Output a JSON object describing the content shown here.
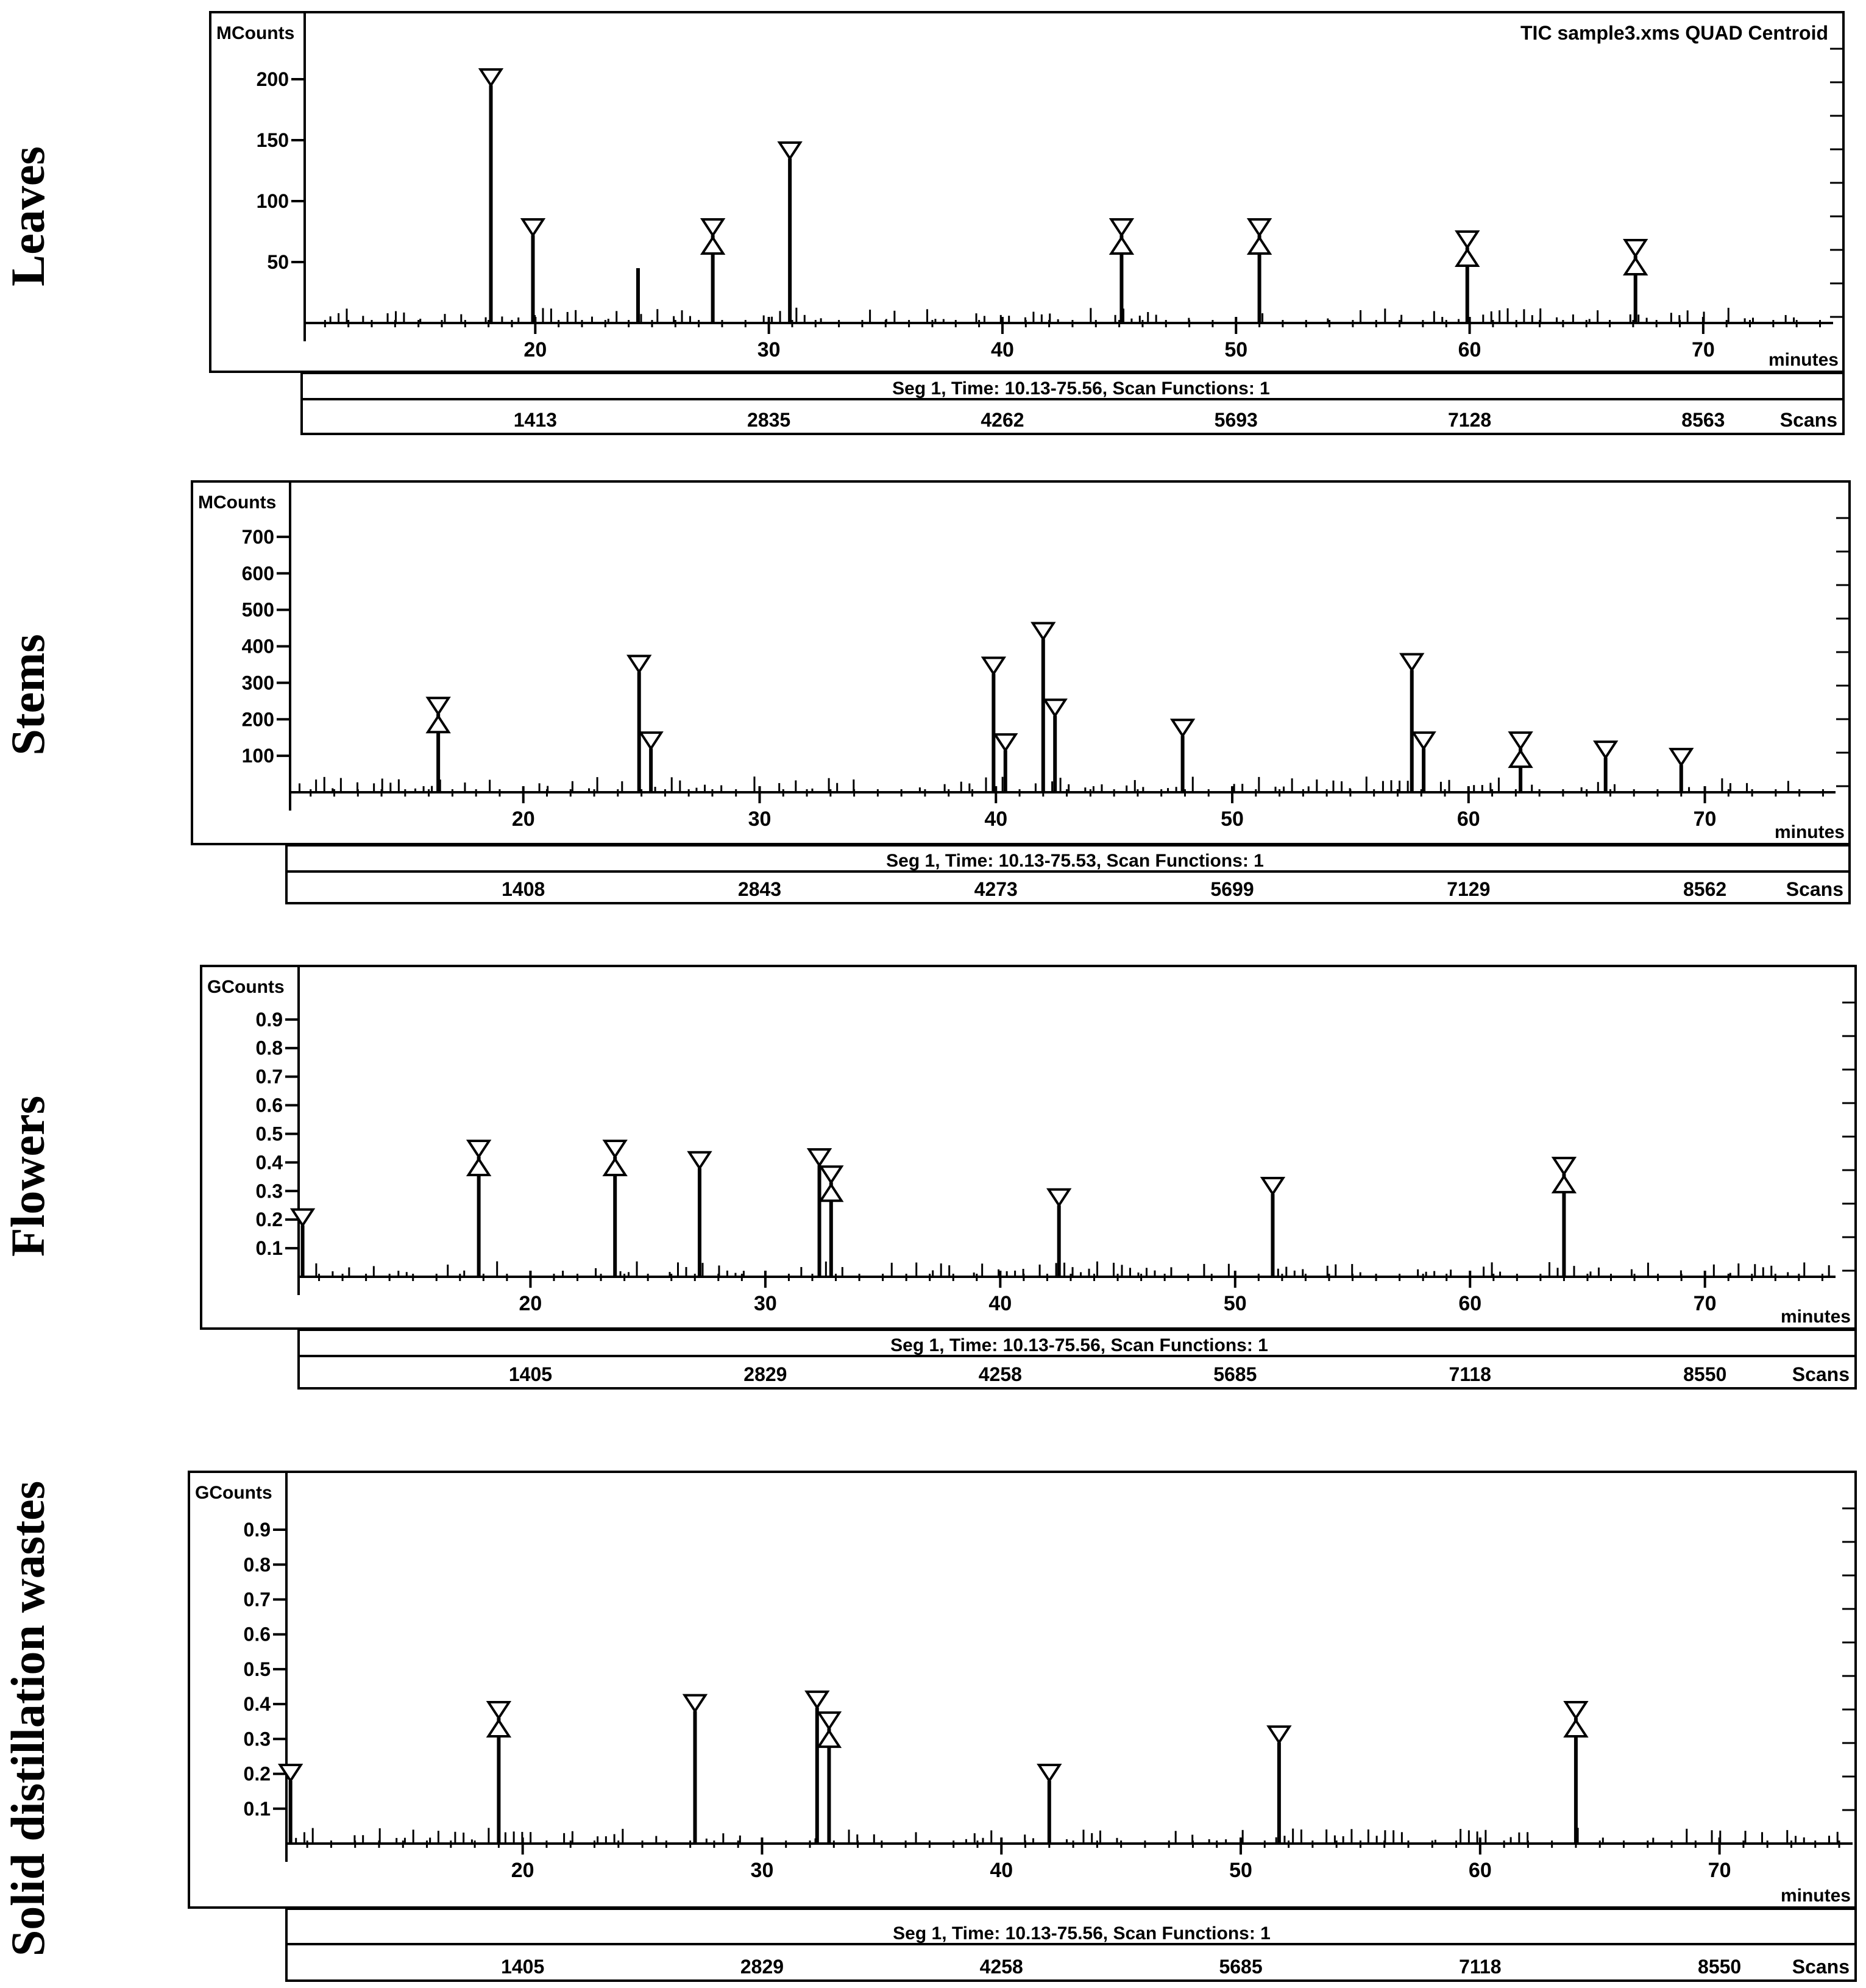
{
  "chart_data": [
    {
      "type": "line",
      "sample_label": "Leaves",
      "yunit": "MCounts",
      "title": "TIC sample3.xms QUAD Centroid",
      "yticks": [
        50,
        100,
        150,
        200
      ],
      "ylim": [
        0,
        230
      ],
      "xticks": [
        20,
        30,
        40,
        50,
        60,
        70
      ],
      "xlim": [
        10.13,
        75.56
      ],
      "xlabel": "minutes",
      "segment_text": "Seg 1, Time: 10.13-75.56, Scan Functions: 1",
      "scans": [
        "1413",
        "2835",
        "4262",
        "5693",
        "7128",
        "8563"
      ],
      "scans_label": "Scans",
      "peaks": [
        {
          "x": 18.1,
          "y": 195,
          "markers": [
            "down"
          ]
        },
        {
          "x": 19.9,
          "y": 72,
          "markers": [
            "down"
          ]
        },
        {
          "x": 24.4,
          "y": 45,
          "markers": []
        },
        {
          "x": 27.6,
          "y": 72,
          "markers": [
            "down",
            "up"
          ]
        },
        {
          "x": 30.9,
          "y": 135,
          "markers": [
            "down"
          ]
        },
        {
          "x": 45.1,
          "y": 72,
          "markers": [
            "down",
            "up"
          ]
        },
        {
          "x": 51.0,
          "y": 72,
          "markers": [
            "down",
            "up"
          ]
        },
        {
          "x": 59.9,
          "y": 62,
          "markers": [
            "down",
            "up"
          ]
        },
        {
          "x": 67.1,
          "y": 55,
          "markers": [
            "down",
            "up"
          ]
        }
      ]
    },
    {
      "type": "line",
      "sample_label": "Stems",
      "yunit": "MCounts",
      "title": "",
      "yticks": [
        100,
        200,
        300,
        400,
        500,
        600,
        700
      ],
      "ylim": [
        0,
        760
      ],
      "xticks": [
        20,
        30,
        40,
        50,
        60,
        70
      ],
      "xlim": [
        10.13,
        75.53
      ],
      "xlabel": "minutes",
      "segment_text": "Seg 1, Time: 10.13-75.53, Scan Functions: 1",
      "scans": [
        "1408",
        "2843",
        "4273",
        "5699",
        "7129",
        "8562"
      ],
      "scans_label": "Scans",
      "peaks": [
        {
          "x": 16.4,
          "y": 215,
          "markers": [
            "down",
            "up"
          ]
        },
        {
          "x": 24.9,
          "y": 330,
          "markers": [
            "down"
          ]
        },
        {
          "x": 25.4,
          "y": 120,
          "markers": [
            "down"
          ]
        },
        {
          "x": 39.9,
          "y": 325,
          "markers": [
            "down"
          ]
        },
        {
          "x": 40.4,
          "y": 115,
          "markers": [
            "down"
          ]
        },
        {
          "x": 42.0,
          "y": 420,
          "markers": [
            "down"
          ]
        },
        {
          "x": 42.5,
          "y": 210,
          "markers": [
            "down"
          ]
        },
        {
          "x": 47.9,
          "y": 155,
          "markers": [
            "down"
          ]
        },
        {
          "x": 57.6,
          "y": 335,
          "markers": [
            "down"
          ]
        },
        {
          "x": 58.1,
          "y": 120,
          "markers": [
            "down"
          ]
        },
        {
          "x": 62.2,
          "y": 120,
          "markers": [
            "down",
            "up"
          ]
        },
        {
          "x": 65.8,
          "y": 95,
          "markers": [
            "down"
          ]
        },
        {
          "x": 69.0,
          "y": 75,
          "markers": [
            "down"
          ]
        }
      ]
    },
    {
      "type": "line",
      "sample_label": "Flowers",
      "yunit": "GCounts",
      "title": "",
      "yticks": [
        0.1,
        0.2,
        0.3,
        0.4,
        0.5,
        0.6,
        0.7,
        0.8,
        0.9
      ],
      "ylim": [
        0,
        0.97
      ],
      "xticks": [
        20,
        30,
        40,
        50,
        60,
        70
      ],
      "xlim": [
        10.13,
        75.56
      ],
      "xlabel": "minutes",
      "segment_text": "Seg 1, Time: 10.13-75.56, Scan Functions: 1",
      "scans": [
        "1405",
        "2829",
        "4258",
        "5685",
        "7118",
        "8550"
      ],
      "scans_label": "Scans",
      "peaks": [
        {
          "x": 10.3,
          "y": 0.18,
          "markers": [
            "down"
          ]
        },
        {
          "x": 17.8,
          "y": 0.42,
          "markers": [
            "down",
            "up"
          ]
        },
        {
          "x": 23.6,
          "y": 0.42,
          "markers": [
            "down",
            "up"
          ]
        },
        {
          "x": 27.2,
          "y": 0.38,
          "markers": [
            "down"
          ]
        },
        {
          "x": 32.3,
          "y": 0.39,
          "markers": [
            "down"
          ]
        },
        {
          "x": 32.8,
          "y": 0.33,
          "markers": [
            "down",
            "up"
          ]
        },
        {
          "x": 42.5,
          "y": 0.25,
          "markers": [
            "down"
          ]
        },
        {
          "x": 51.6,
          "y": 0.29,
          "markers": [
            "down"
          ]
        },
        {
          "x": 64.0,
          "y": 0.36,
          "markers": [
            "down",
            "up"
          ]
        }
      ]
    },
    {
      "type": "line",
      "sample_label": "Solid distillation wastes",
      "yunit": "GCounts",
      "title": "",
      "yticks": [
        0.1,
        0.2,
        0.3,
        0.4,
        0.5,
        0.6,
        0.7,
        0.8,
        0.9
      ],
      "ylim": [
        0,
        0.97
      ],
      "xticks": [
        20,
        30,
        40,
        50,
        60,
        70
      ],
      "xlim": [
        10.13,
        75.56
      ],
      "xlabel": "minutes",
      "segment_text": "Seg 1, Time: 10.13-75.56, Scan Functions: 1",
      "scans": [
        "1405",
        "2829",
        "4258",
        "5685",
        "7118",
        "8550"
      ],
      "scans_label": "Scans",
      "peaks": [
        {
          "x": 10.3,
          "y": 0.18,
          "markers": [
            "down"
          ]
        },
        {
          "x": 19.0,
          "y": 0.36,
          "markers": [
            "down",
            "up"
          ]
        },
        {
          "x": 27.2,
          "y": 0.38,
          "markers": [
            "down"
          ]
        },
        {
          "x": 32.3,
          "y": 0.39,
          "markers": [
            "down"
          ]
        },
        {
          "x": 32.8,
          "y": 0.33,
          "markers": [
            "down",
            "up"
          ]
        },
        {
          "x": 42.0,
          "y": 0.18,
          "markers": [
            "down"
          ]
        },
        {
          "x": 51.6,
          "y": 0.29,
          "markers": [
            "down"
          ]
        },
        {
          "x": 64.0,
          "y": 0.36,
          "markers": [
            "down",
            "up"
          ]
        }
      ]
    }
  ]
}
